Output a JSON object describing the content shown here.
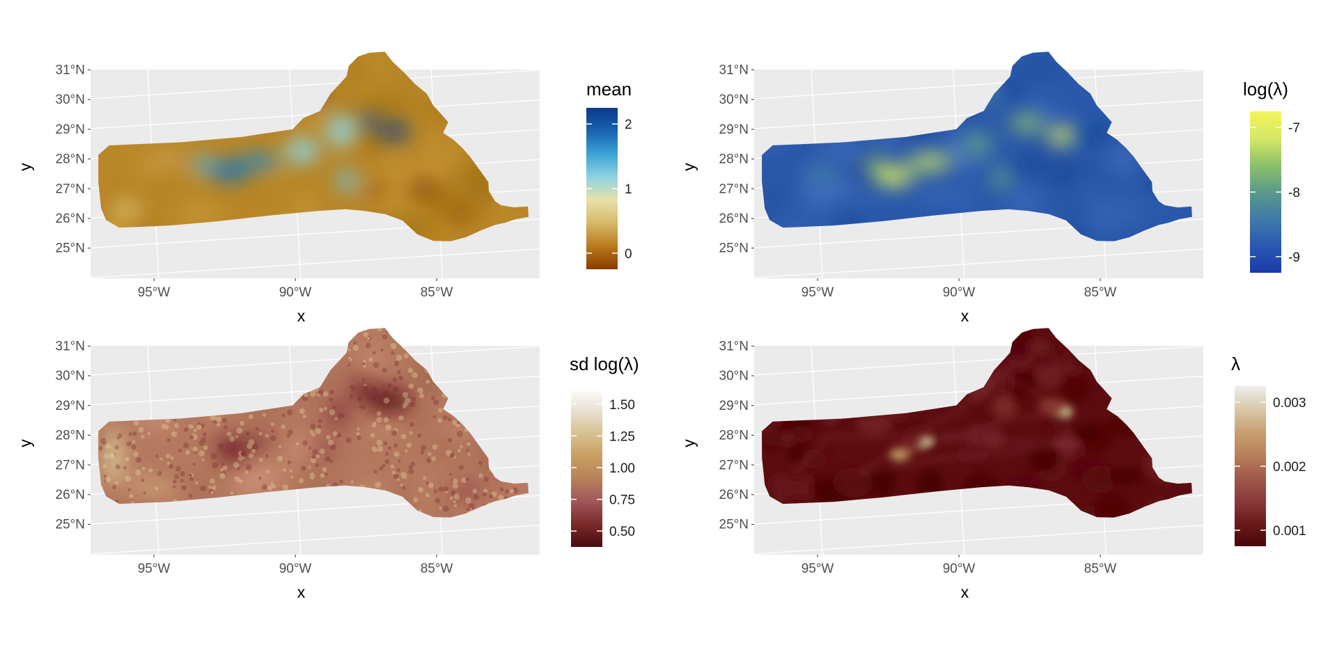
{
  "panels": [
    {
      "id": "mean",
      "x_label": "x",
      "y_label": "y",
      "lat_ticks": [
        "31°N",
        "30°N",
        "29°N",
        "28°N",
        "27°N",
        "26°N",
        "25°N"
      ],
      "lon_ticks": [
        "95°W",
        "90°W",
        "85°W"
      ],
      "legend": {
        "title": "mean",
        "title_is_math": false,
        "tick_labels": [
          "2",
          "1",
          "0"
        ],
        "colors": [
          "#8a3b00",
          "#b87a1a",
          "#d6b86a",
          "#e8e3a8",
          "#8fd2e0",
          "#3ba3d6",
          "#1864b0",
          "#0a3a8a"
        ]
      },
      "fill": {
        "base": [
          185,
          135,
          40
        ],
        "blobs": [
          {
            "lon": -92.3,
            "lat": 27.3,
            "rx": 0.7,
            "ry": 0.35,
            "color": "#1a78c2"
          },
          {
            "lon": -91.2,
            "lat": 27.55,
            "rx": 0.7,
            "ry": 0.25,
            "color": "#1f85c8"
          },
          {
            "lon": -93.2,
            "lat": 27.55,
            "rx": 0.45,
            "ry": 0.25,
            "color": "#4aa8d8"
          },
          {
            "lon": -89.7,
            "lat": 27.8,
            "rx": 0.6,
            "ry": 0.45,
            "color": "#8fd2e0"
          },
          {
            "lon": -88.3,
            "lat": 28.4,
            "rx": 0.5,
            "ry": 0.55,
            "color": "#8fd2e0"
          },
          {
            "lon": -86.4,
            "lat": 28.25,
            "rx": 0.5,
            "ry": 0.3,
            "color": "#0f3d8c"
          },
          {
            "lon": -87.3,
            "lat": 28.6,
            "rx": 0.4,
            "ry": 0.25,
            "color": "#1a5ab0"
          },
          {
            "lon": -88.2,
            "lat": 26.7,
            "rx": 0.35,
            "ry": 0.35,
            "color": "#6ec3e0"
          },
          {
            "lon": -87.2,
            "lat": 26.3,
            "rx": 0.35,
            "ry": 0.3,
            "color": "#9a5a10"
          },
          {
            "lon": -85.5,
            "lat": 26.3,
            "rx": 0.4,
            "ry": 0.35,
            "color": "#8e4c0a"
          },
          {
            "lon": -84.2,
            "lat": 25.3,
            "rx": 0.4,
            "ry": 0.3,
            "color": "#9a5a10"
          },
          {
            "lon": -89.2,
            "lat": 29.7,
            "rx": 0.5,
            "ry": 0.4,
            "color": "#8e4c0a"
          },
          {
            "lon": -96.0,
            "lat": 26.2,
            "rx": 0.5,
            "ry": 0.3,
            "color": "#d8c070"
          },
          {
            "lon": -94.5,
            "lat": 27.8,
            "rx": 0.5,
            "ry": 0.3,
            "color": "#c8a050"
          }
        ]
      }
    },
    {
      "id": "log-lambda",
      "x_label": "x",
      "y_label": "y",
      "lat_ticks": [
        "31°N",
        "30°N",
        "29°N",
        "28°N",
        "27°N",
        "26°N",
        "25°N"
      ],
      "lon_ticks": [
        "95°W",
        "90°W",
        "85°W"
      ],
      "legend": {
        "title": "log(λ)",
        "title_is_math": true,
        "tick_labels": [
          "-7",
          "-8",
          "-9"
        ],
        "colors": [
          "#1a3aaa",
          "#2a58b0",
          "#3f7aaa",
          "#5a9a8a",
          "#8ec06a",
          "#d4e866",
          "#f5f55a"
        ]
      },
      "fill": {
        "base": [
          42,
          88,
          170
        ],
        "blobs": [
          {
            "lon": -92.3,
            "lat": 27.1,
            "rx": 0.7,
            "ry": 0.35,
            "color": "#e0ee60"
          },
          {
            "lon": -91.0,
            "lat": 27.5,
            "rx": 0.8,
            "ry": 0.3,
            "color": "#c8e060"
          },
          {
            "lon": -92.9,
            "lat": 27.5,
            "rx": 0.5,
            "ry": 0.25,
            "color": "#9cc870"
          },
          {
            "lon": -86.3,
            "lat": 28.1,
            "rx": 0.5,
            "ry": 0.3,
            "color": "#e8ef60"
          },
          {
            "lon": -87.5,
            "lat": 28.6,
            "rx": 0.6,
            "ry": 0.3,
            "color": "#8ec06a"
          },
          {
            "lon": -89.3,
            "lat": 28.0,
            "rx": 0.6,
            "ry": 0.4,
            "color": "#5a9a8a"
          },
          {
            "lon": -88.5,
            "lat": 26.8,
            "rx": 0.4,
            "ry": 0.4,
            "color": "#5a9a8a"
          },
          {
            "lon": -94.8,
            "lat": 27.3,
            "rx": 0.6,
            "ry": 0.4,
            "color": "#3f7aaa"
          },
          {
            "lon": -88.8,
            "lat": 29.6,
            "rx": 0.6,
            "ry": 0.4,
            "color": "#3f78b0"
          }
        ]
      }
    },
    {
      "id": "sd-log-lambda",
      "x_label": "x",
      "y_label": "y",
      "lat_ticks": [
        "31°N",
        "30°N",
        "29°N",
        "28°N",
        "27°N",
        "26°N",
        "25°N"
      ],
      "lon_ticks": [
        "95°W",
        "90°W",
        "85°W"
      ],
      "legend": {
        "title": "sd log(λ)",
        "title_is_math": true,
        "tick_labels": [
          "1.50",
          "1.25",
          "1.00",
          "0.75",
          "0.50"
        ],
        "colors": [
          "#4a0a10",
          "#7a2a2a",
          "#a0565a",
          "#b8805a",
          "#c8a060",
          "#d6c090",
          "#e8e0d0",
          "#ffffff"
        ]
      },
      "fill": {
        "base": [
          180,
          120,
          95
        ],
        "dots": true,
        "blobs": [
          {
            "lon": -92.2,
            "lat": 27.2,
            "rx": 0.6,
            "ry": 0.4,
            "color": "#6a1a22"
          },
          {
            "lon": -91.3,
            "lat": 27.4,
            "rx": 0.4,
            "ry": 0.25,
            "color": "#7a2a30"
          },
          {
            "lon": -86.6,
            "lat": 28.5,
            "rx": 0.8,
            "ry": 0.4,
            "color": "#5a1018"
          },
          {
            "lon": -87.5,
            "lat": 28.9,
            "rx": 0.5,
            "ry": 0.3,
            "color": "#6a1a22"
          },
          {
            "lon": -88.4,
            "lat": 28.2,
            "rx": 0.4,
            "ry": 0.5,
            "color": "#8a3a40"
          },
          {
            "lon": -88.9,
            "lat": 27.0,
            "rx": 0.3,
            "ry": 0.3,
            "color": "#8a3a40"
          },
          {
            "lon": -96.4,
            "lat": 27.2,
            "rx": 0.4,
            "ry": 1.0,
            "color": "#d8c090"
          },
          {
            "lon": -95.0,
            "lat": 26.1,
            "rx": 0.8,
            "ry": 0.3,
            "color": "#c8a070"
          },
          {
            "lon": -90.0,
            "lat": 29.8,
            "rx": 0.6,
            "ry": 0.5,
            "color": "#c8a070"
          },
          {
            "lon": -84.0,
            "lat": 25.3,
            "rx": 0.5,
            "ry": 0.3,
            "color": "#9a4a50"
          }
        ]
      }
    },
    {
      "id": "lambda",
      "x_label": "x",
      "y_label": "y",
      "lat_ticks": [
        "31°N",
        "30°N",
        "29°N",
        "28°N",
        "27°N",
        "26°N",
        "25°N"
      ],
      "lon_ticks": [
        "95°W",
        "90°W",
        "85°W"
      ],
      "legend": {
        "title": "λ",
        "title_is_math": true,
        "tick_labels": [
          "0.003",
          "0.002",
          "0.001"
        ],
        "colors": [
          "#4a0608",
          "#6a1a1a",
          "#8a3a3a",
          "#a05a4a",
          "#b8805a",
          "#c8a070",
          "#d8c8a8",
          "#eeeeee"
        ]
      },
      "fill": {
        "base": [
          92,
          12,
          16
        ],
        "streaks": true,
        "blobs": [
          {
            "lon": -92.1,
            "lat": 27.0,
            "rx": 0.35,
            "ry": 0.18,
            "color": "#c8b070"
          },
          {
            "lon": -91.1,
            "lat": 27.4,
            "rx": 0.25,
            "ry": 0.15,
            "color": "#e0e0b0"
          },
          {
            "lon": -91.7,
            "lat": 27.2,
            "rx": 0.6,
            "ry": 0.15,
            "color": "#8a3a30"
          },
          {
            "lon": -86.2,
            "lat": 28.1,
            "rx": 0.3,
            "ry": 0.2,
            "color": "#d8d8a0"
          },
          {
            "lon": -86.6,
            "lat": 28.3,
            "rx": 0.5,
            "ry": 0.3,
            "color": "#8a3a30"
          },
          {
            "lon": -88.3,
            "lat": 28.4,
            "rx": 0.4,
            "ry": 0.4,
            "color": "#7a2a26"
          }
        ]
      }
    }
  ]
}
